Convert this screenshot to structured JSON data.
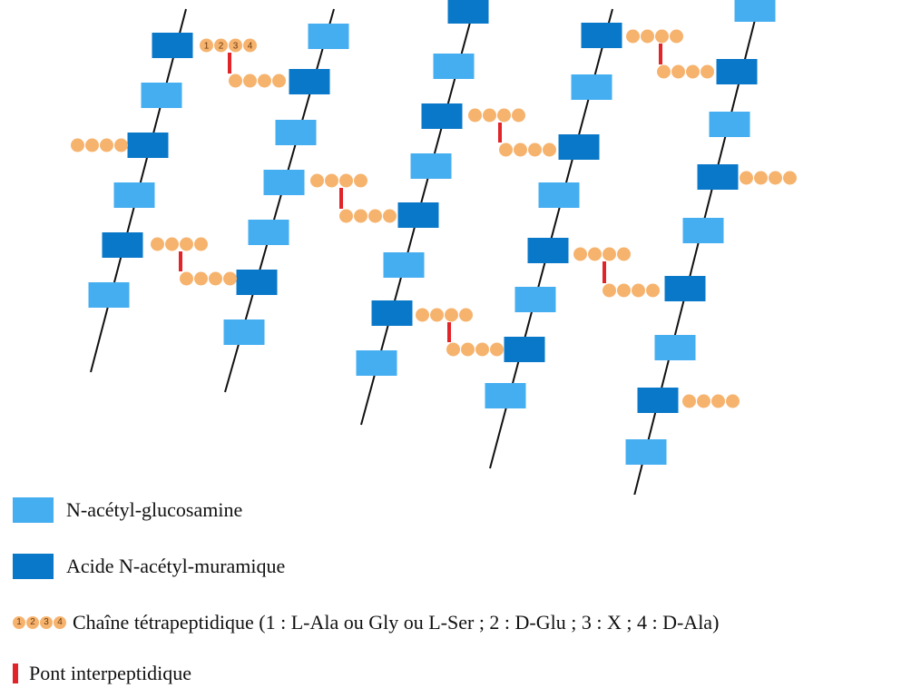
{
  "colors": {
    "nag": "#45aef0",
    "nam": "#0a78c8",
    "peptide": "#f6b36e",
    "peptide_text": "#6b3b10",
    "bridge": "#e0242a",
    "strand": "#111111"
  },
  "peptide_numbers": [
    "1",
    "2",
    "3",
    "4"
  ],
  "legend": {
    "nag_label": "N-acétyl-glucosamine",
    "nam_label": "Acide N-acétyl-muramique",
    "peptide_label": "Chaîne tétrapeptidique (1 : L-Ala ou Gly ou L-Ser ; 2 : D-Glu ; 3 : X ; 4 : D-Ala)",
    "bridge_label": "Pont interpeptidique"
  }
}
